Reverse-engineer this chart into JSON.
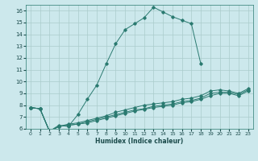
{
  "xlabel": "Humidex (Indice chaleur)",
  "bg_color": "#cce8ec",
  "grid_color": "#aacccc",
  "line_color": "#2a7a70",
  "xlim": [
    -0.5,
    23.5
  ],
  "ylim": [
    6,
    16.5
  ],
  "xticks": [
    0,
    1,
    2,
    3,
    4,
    5,
    6,
    7,
    8,
    9,
    10,
    11,
    12,
    13,
    14,
    15,
    16,
    17,
    18,
    19,
    20,
    21,
    22,
    23
  ],
  "yticks": [
    6,
    7,
    8,
    9,
    10,
    11,
    12,
    13,
    14,
    15,
    16
  ],
  "series": [
    {
      "x": [
        0,
        1,
        2,
        3,
        4,
        5,
        6,
        7,
        8,
        9,
        10,
        11,
        12,
        13,
        14,
        15,
        16,
        17,
        18
      ],
      "y": [
        7.8,
        7.7,
        5.8,
        6.3,
        6.2,
        7.2,
        8.5,
        9.7,
        11.5,
        13.2,
        14.4,
        14.9,
        15.4,
        16.3,
        15.9,
        15.5,
        15.2,
        14.9,
        11.5
      ]
    },
    {
      "x": [
        0,
        1,
        2,
        3,
        4,
        5,
        6,
        7,
        8,
        9,
        10,
        11,
        12,
        13,
        14,
        15,
        16,
        17,
        18,
        19,
        20,
        21,
        22,
        23
      ],
      "y": [
        7.8,
        7.7,
        5.8,
        6.2,
        6.4,
        6.5,
        6.7,
        6.9,
        7.1,
        7.4,
        7.6,
        7.8,
        8.0,
        8.1,
        8.2,
        8.3,
        8.5,
        8.6,
        8.8,
        9.2,
        9.3,
        9.2,
        9.0,
        9.4
      ]
    },
    {
      "x": [
        0,
        1,
        2,
        3,
        4,
        5,
        6,
        7,
        8,
        9,
        10,
        11,
        12,
        13,
        14,
        15,
        16,
        17,
        18,
        19,
        20,
        21,
        22,
        23
      ],
      "y": [
        7.8,
        7.7,
        5.8,
        6.2,
        6.3,
        6.4,
        6.6,
        6.8,
        7.0,
        7.2,
        7.4,
        7.6,
        7.7,
        7.9,
        8.0,
        8.1,
        8.3,
        8.4,
        8.6,
        9.0,
        9.1,
        9.1,
        8.9,
        9.3
      ]
    },
    {
      "x": [
        0,
        1,
        2,
        3,
        4,
        5,
        6,
        7,
        8,
        9,
        10,
        11,
        12,
        13,
        14,
        15,
        16,
        17,
        18,
        19,
        20,
        21,
        22,
        23
      ],
      "y": [
        7.8,
        7.7,
        5.8,
        6.2,
        6.3,
        6.4,
        6.5,
        6.7,
        6.9,
        7.1,
        7.3,
        7.5,
        7.65,
        7.8,
        7.9,
        8.0,
        8.2,
        8.3,
        8.5,
        8.8,
        9.0,
        9.0,
        8.8,
        9.2
      ]
    }
  ]
}
